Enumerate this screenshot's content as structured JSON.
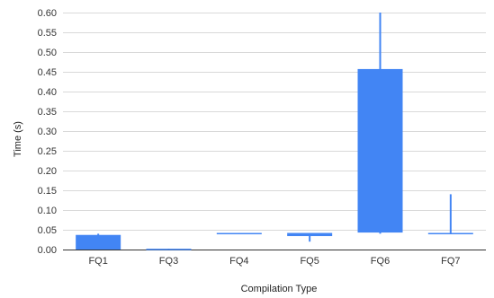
{
  "chart_data": {
    "type": "candlestick",
    "title": "",
    "xlabel": "Compilation Type",
    "ylabel": "Time (s)",
    "ylim": [
      0,
      0.6
    ],
    "yticks": [
      0.0,
      0.05,
      0.1,
      0.15,
      0.2,
      0.25,
      0.3,
      0.35,
      0.4,
      0.45,
      0.5,
      0.55,
      0.6
    ],
    "ytick_labels": [
      "0.00",
      "0.05",
      "0.10",
      "0.15",
      "0.20",
      "0.25",
      "0.30",
      "0.35",
      "0.40",
      "0.45",
      "0.50",
      "0.55",
      "0.60"
    ],
    "grid": true,
    "legend": "none",
    "color": "#4285f4",
    "categories": [
      "FQ1",
      "FQ3",
      "FQ4",
      "FQ5",
      "FQ6",
      "FQ7"
    ],
    "series": [
      {
        "values": [
          {
            "low": 0.0,
            "open": 0.0,
            "close": 0.037,
            "high": 0.04
          },
          {
            "low": 0.0,
            "open": 0.0,
            "close": 0.002,
            "high": 0.002
          },
          {
            "low": 0.04,
            "open": 0.04,
            "close": 0.042,
            "high": 0.042
          },
          {
            "low": 0.02,
            "open": 0.034,
            "close": 0.042,
            "high": 0.042
          },
          {
            "low": 0.04,
            "open": 0.043,
            "close": 0.457,
            "high": 0.6
          },
          {
            "low": 0.04,
            "open": 0.04,
            "close": 0.042,
            "high": 0.14
          }
        ]
      }
    ]
  }
}
